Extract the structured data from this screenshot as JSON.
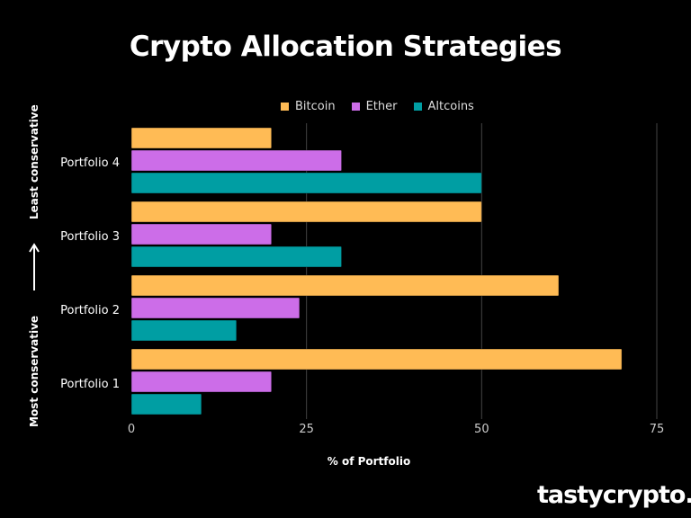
{
  "chart_data": {
    "type": "bar",
    "orientation": "horizontal",
    "title": "Crypto Allocation Strategies",
    "xlabel": "% of Portfolio",
    "ylabel": "",
    "categories": [
      "Portfolio 4",
      "Portfolio 3",
      "Portfolio 2",
      "Portfolio 1"
    ],
    "series": [
      {
        "name": "Bitcoin",
        "color": "#ffbb55",
        "values": [
          20,
          50,
          61,
          70
        ]
      },
      {
        "name": "Ether",
        "color": "#cc6de8",
        "values": [
          30,
          20,
          24,
          20
        ]
      },
      {
        "name": "Altcoins",
        "color": "#009ea3",
        "values": [
          50,
          30,
          15,
          10
        ]
      }
    ],
    "xlim": [
      0,
      75
    ],
    "xticks": [
      "0",
      "25",
      "50",
      "75"
    ],
    "grid": true,
    "legend": "top"
  },
  "side_labels": {
    "top": "Least conservative",
    "bottom": "Most conservative",
    "arrow_icon": "arrow-up-icon"
  },
  "logo": {
    "part1": "tasty",
    "part2": "crypto."
  }
}
